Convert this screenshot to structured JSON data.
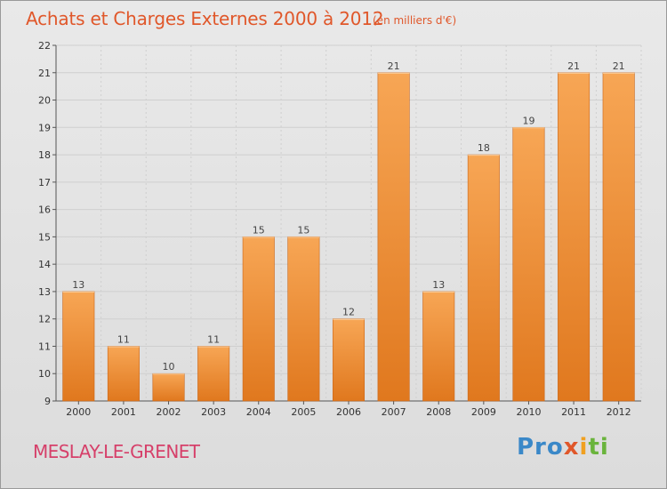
{
  "header": {
    "title": "Achats et Charges Externes 2000 à 2012",
    "subtitle": "(en milliers d'€)"
  },
  "footer": {
    "commune": "MESLAY-LE-GRENET",
    "logo": [
      "Pro",
      "x",
      "i",
      "ti"
    ]
  },
  "colors": {
    "bar_top": "#f7a655",
    "bar_bottom": "#e0781e",
    "bar_edge": "#c9661a",
    "grid": "#cfcfcf",
    "title": "#e0572a",
    "commune": "#d6406a"
  },
  "chart_data": {
    "type": "bar",
    "categories": [
      "2000",
      "2001",
      "2002",
      "2003",
      "2004",
      "2005",
      "2006",
      "2007",
      "2008",
      "2009",
      "2010",
      "2011",
      "2012"
    ],
    "values": [
      13,
      11,
      10,
      11,
      15,
      15,
      12,
      21,
      13,
      18,
      19,
      21,
      21
    ],
    "data_labels": [
      "13",
      "11",
      "10",
      "11",
      "15",
      "15",
      "12",
      "21",
      "13",
      "18",
      "19",
      "21",
      "21"
    ],
    "title": "Achats et Charges Externes 2000 à 2012",
    "unit": "(en milliers d'€)",
    "xlabel": "",
    "ylabel": "",
    "ylim": [
      9,
      22
    ],
    "yticks": [
      9,
      10,
      11,
      12,
      13,
      14,
      15,
      16,
      17,
      18,
      19,
      20,
      21,
      22
    ],
    "ytick_labels": [
      "9",
      "10",
      "11",
      "12",
      "13",
      "14",
      "15",
      "16",
      "17",
      "18",
      "19",
      "20",
      "21",
      "22"
    ],
    "grid": true,
    "legend": false
  }
}
